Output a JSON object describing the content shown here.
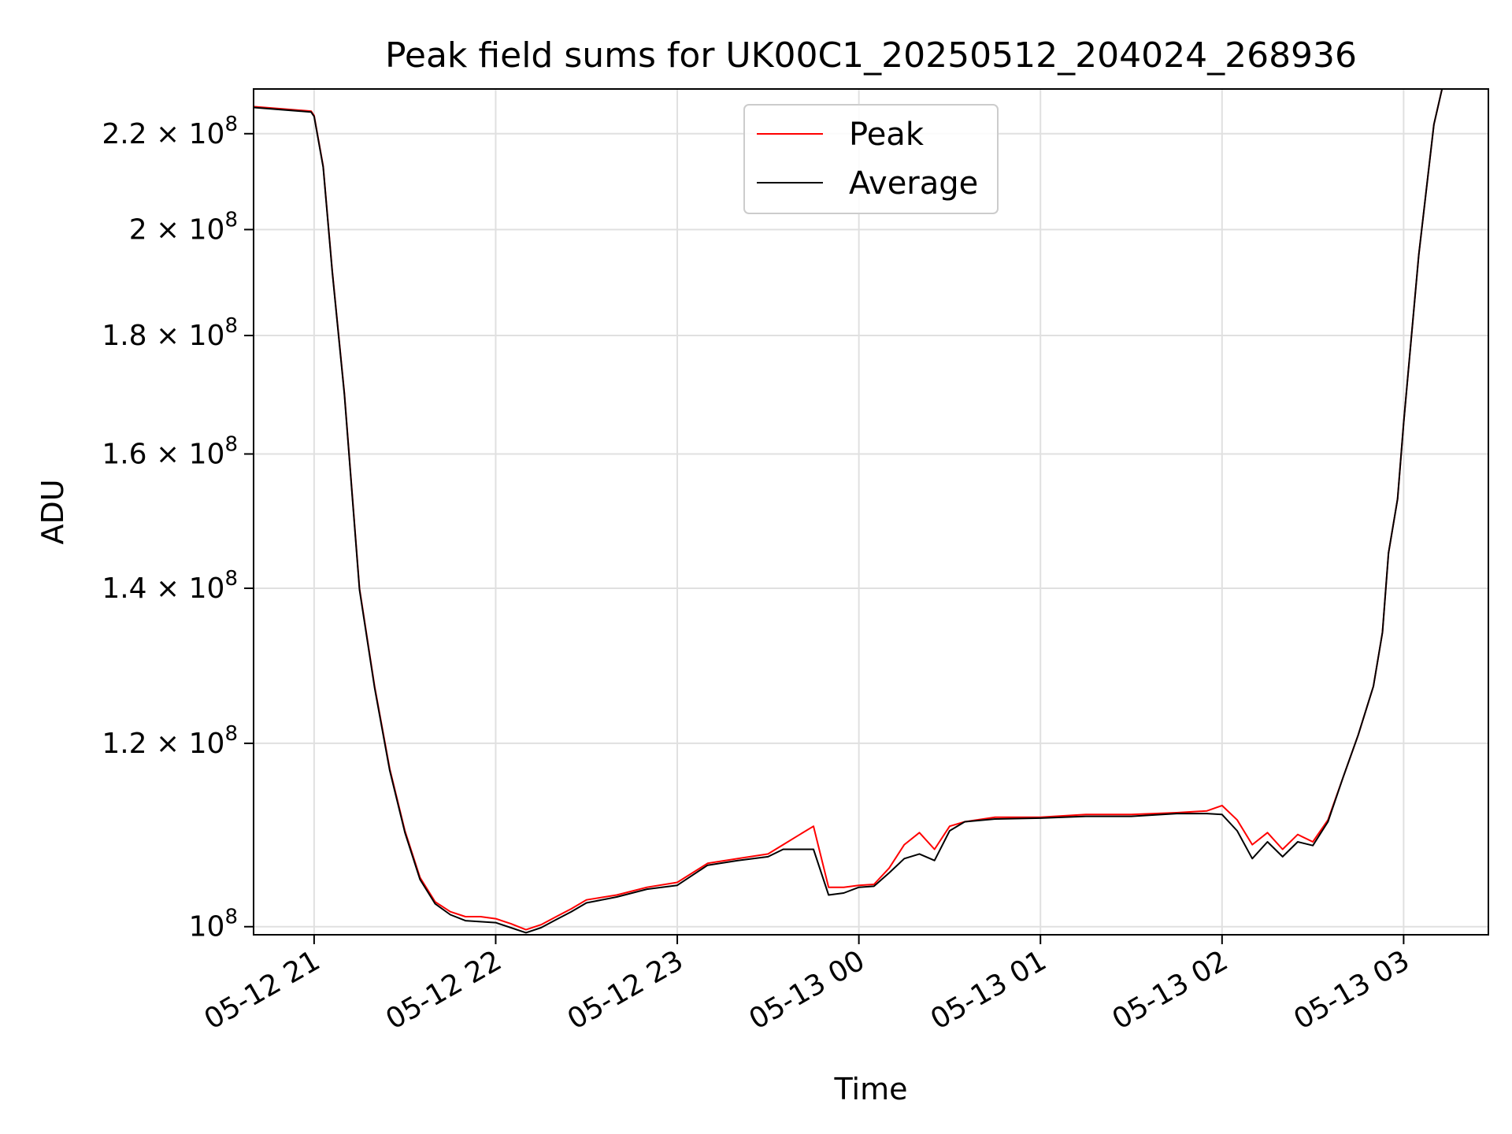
{
  "chart_data": {
    "type": "line",
    "title": "Peak field sums for UK00C1_20250512_204024_268936",
    "xlabel": "Time",
    "ylabel": "ADU",
    "yscale": "log",
    "grid": true,
    "legend_position": "top-center",
    "xlim": [
      "2025-05-12 20:40",
      "2025-05-13 03:28"
    ],
    "ylim": [
      99200000,
      230000000
    ],
    "x_ticks": [
      "05-12 21",
      "05-12 22",
      "05-12 23",
      "05-13 00",
      "05-13 01",
      "05-13 02",
      "05-13 03"
    ],
    "y_ticks": [
      {
        "value": 100000000,
        "mantissa": "",
        "exponent": "8"
      },
      {
        "value": 120000000,
        "mantissa": "1.2",
        "exponent": "8"
      },
      {
        "value": 140000000,
        "mantissa": "1.4",
        "exponent": "8"
      },
      {
        "value": 160000000,
        "mantissa": "1.6",
        "exponent": "8"
      },
      {
        "value": 180000000,
        "mantissa": "1.8",
        "exponent": "8"
      },
      {
        "value": 200000000,
        "mantissa": "2",
        "exponent": "8"
      },
      {
        "value": 220000000,
        "mantissa": "2.2",
        "exponent": "8"
      }
    ],
    "series": [
      {
        "name": "Peak",
        "color": "#ff0000",
        "x": [
          "2025-05-12 20:40",
          "2025-05-12 20:59",
          "2025-05-12 21:00",
          "2025-05-12 21:03",
          "2025-05-12 21:06",
          "2025-05-12 21:10",
          "2025-05-12 21:15",
          "2025-05-12 21:20",
          "2025-05-12 21:25",
          "2025-05-12 21:30",
          "2025-05-12 21:35",
          "2025-05-12 21:40",
          "2025-05-12 21:45",
          "2025-05-12 21:50",
          "2025-05-12 21:55",
          "2025-05-12 22:00",
          "2025-05-12 22:05",
          "2025-05-12 22:10",
          "2025-05-12 22:15",
          "2025-05-12 22:20",
          "2025-05-12 22:25",
          "2025-05-12 22:30",
          "2025-05-12 22:40",
          "2025-05-12 22:50",
          "2025-05-12 23:00",
          "2025-05-12 23:10",
          "2025-05-12 23:20",
          "2025-05-12 23:30",
          "2025-05-12 23:35",
          "2025-05-12 23:40",
          "2025-05-12 23:45",
          "2025-05-12 23:50",
          "2025-05-12 23:55",
          "2025-05-13 00:00",
          "2025-05-13 00:05",
          "2025-05-13 00:10",
          "2025-05-13 00:15",
          "2025-05-13 00:20",
          "2025-05-13 00:25",
          "2025-05-13 00:30",
          "2025-05-13 00:35",
          "2025-05-13 00:45",
          "2025-05-13 01:00",
          "2025-05-13 01:15",
          "2025-05-13 01:30",
          "2025-05-13 01:45",
          "2025-05-13 01:55",
          "2025-05-13 02:00",
          "2025-05-13 02:05",
          "2025-05-13 02:10",
          "2025-05-13 02:15",
          "2025-05-13 02:20",
          "2025-05-13 02:25",
          "2025-05-13 02:30",
          "2025-05-13 02:35",
          "2025-05-13 02:40",
          "2025-05-13 02:45",
          "2025-05-13 02:50",
          "2025-05-13 02:53",
          "2025-05-13 02:55",
          "2025-05-13 02:58",
          "2025-05-13 03:00",
          "2025-05-13 03:05",
          "2025-05-13 03:10",
          "2025-05-13 03:13"
        ],
        "y": [
          226000000,
          225000000,
          224000000,
          213000000,
          192000000,
          170000000,
          140000000,
          127000000,
          117000000,
          110000000,
          105000000,
          102500000,
          101500000,
          101000000,
          101000000,
          100800000,
          100300000,
          99700000,
          100200000,
          101000000,
          101800000,
          102700000,
          103200000,
          104000000,
          104500000,
          106500000,
          107000000,
          107500000,
          108500000,
          109500000,
          110500000,
          104000000,
          104000000,
          104200000,
          104300000,
          106000000,
          108500000,
          109800000,
          108000000,
          110500000,
          111000000,
          111500000,
          111500000,
          111800000,
          111800000,
          112000000,
          112200000,
          112800000,
          111200000,
          108500000,
          109800000,
          108000000,
          109600000,
          108800000,
          111200000,
          116000000,
          121000000,
          127000000,
          134000000,
          145000000,
          153000000,
          165000000,
          195000000,
          222000000,
          231000000
        ]
      },
      {
        "name": "Average",
        "color": "#000000",
        "x": [
          "2025-05-12 20:40",
          "2025-05-12 20:59",
          "2025-05-12 21:00",
          "2025-05-12 21:03",
          "2025-05-12 21:06",
          "2025-05-12 21:10",
          "2025-05-12 21:15",
          "2025-05-12 21:20",
          "2025-05-12 21:25",
          "2025-05-12 21:30",
          "2025-05-12 21:35",
          "2025-05-12 21:40",
          "2025-05-12 21:45",
          "2025-05-12 21:50",
          "2025-05-12 21:55",
          "2025-05-12 22:00",
          "2025-05-12 22:05",
          "2025-05-12 22:10",
          "2025-05-12 22:15",
          "2025-05-12 22:20",
          "2025-05-12 22:25",
          "2025-05-12 22:30",
          "2025-05-12 22:40",
          "2025-05-12 22:50",
          "2025-05-12 23:00",
          "2025-05-12 23:10",
          "2025-05-12 23:20",
          "2025-05-12 23:30",
          "2025-05-12 23:35",
          "2025-05-12 23:40",
          "2025-05-12 23:45",
          "2025-05-12 23:50",
          "2025-05-12 23:55",
          "2025-05-13 00:00",
          "2025-05-13 00:05",
          "2025-05-13 00:10",
          "2025-05-13 00:15",
          "2025-05-13 00:20",
          "2025-05-13 00:25",
          "2025-05-13 00:30",
          "2025-05-13 00:35",
          "2025-05-13 00:45",
          "2025-05-13 01:00",
          "2025-05-13 01:15",
          "2025-05-13 01:30",
          "2025-05-13 01:45",
          "2025-05-13 01:55",
          "2025-05-13 02:00",
          "2025-05-13 02:05",
          "2025-05-13 02:10",
          "2025-05-13 02:15",
          "2025-05-13 02:20",
          "2025-05-13 02:25",
          "2025-05-13 02:30",
          "2025-05-13 02:35",
          "2025-05-13 02:40",
          "2025-05-13 02:45",
          "2025-05-13 02:50",
          "2025-05-13 02:53",
          "2025-05-13 02:55",
          "2025-05-13 02:58",
          "2025-05-13 03:00",
          "2025-05-13 03:05",
          "2025-05-13 03:10",
          "2025-05-13 03:13"
        ],
        "y": [
          225800000,
          224800000,
          223800000,
          212800000,
          191800000,
          169800000,
          139800000,
          126800000,
          116800000,
          109800000,
          104800000,
          102300000,
          101200000,
          100600000,
          100500000,
          100400000,
          99900000,
          99400000,
          99900000,
          100700000,
          101500000,
          102400000,
          103000000,
          103800000,
          104200000,
          106300000,
          106800000,
          107200000,
          108000000,
          108000000,
          108000000,
          103200000,
          103400000,
          104000000,
          104100000,
          105500000,
          107000000,
          107500000,
          106800000,
          110000000,
          111000000,
          111300000,
          111400000,
          111600000,
          111600000,
          111900000,
          111900000,
          111800000,
          110000000,
          107000000,
          108800000,
          107200000,
          108800000,
          108400000,
          111000000,
          116000000,
          121000000,
          127000000,
          134000000,
          145000000,
          153000000,
          165000000,
          195000000,
          222000000,
          231000000
        ]
      }
    ]
  }
}
